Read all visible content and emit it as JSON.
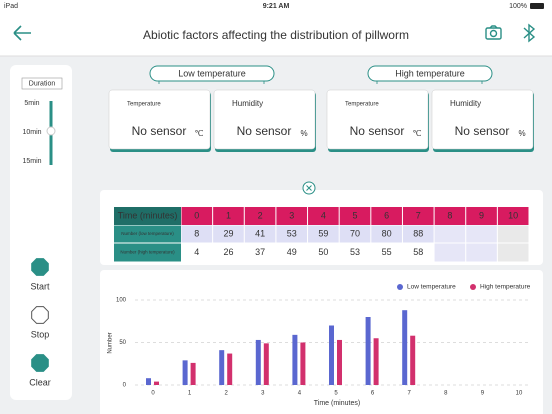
{
  "status_bar": {
    "device": "iPad",
    "time": "9:21 AM",
    "battery": "100%"
  },
  "header": {
    "title": "Abiotic factors affecting the distribution of pillworm"
  },
  "sidebar": {
    "duration_label": "Duration",
    "durations": [
      "5min",
      "10min",
      "15min"
    ],
    "selected_duration": 1,
    "buttons": [
      "Start",
      "Stop",
      "Clear"
    ]
  },
  "sensors": [
    {
      "title": "Low temperature",
      "fields": [
        {
          "label": "Temperature",
          "value": "No sensor",
          "unit": "℃"
        },
        {
          "label": "Humidity",
          "value": "No sensor",
          "unit": "%"
        }
      ]
    },
    {
      "title": "High temperature",
      "fields": [
        {
          "label": "Temperature",
          "value": "No sensor",
          "unit": "℃"
        },
        {
          "label": "Humidity",
          "value": "No sensor",
          "unit": "%"
        }
      ]
    }
  ],
  "table": {
    "header": "Time (minutes)",
    "row_labels": [
      "Number (low temperature)",
      "Number (high temperature)"
    ]
  },
  "chart_data": {
    "type": "bar",
    "x_label": "Time (minutes)",
    "y_label": "Number",
    "categories": [
      "0",
      "1",
      "2",
      "3",
      "4",
      "5",
      "6",
      "7",
      "8",
      "9",
      "10"
    ],
    "series": [
      {
        "name": "Low temperature",
        "color": "#5a67d0",
        "values": [
          8,
          29,
          41,
          53,
          59,
          70,
          80,
          88,
          null,
          null,
          null
        ]
      },
      {
        "name": "High temperature",
        "color": "#d2306d",
        "values": [
          4,
          26,
          37,
          49,
          50,
          53,
          55,
          58,
          null,
          null,
          null
        ]
      }
    ],
    "ylim": [
      0,
      100
    ],
    "yticks": [
      0,
      50,
      100
    ],
    "grid": true,
    "legend": "top-right"
  }
}
